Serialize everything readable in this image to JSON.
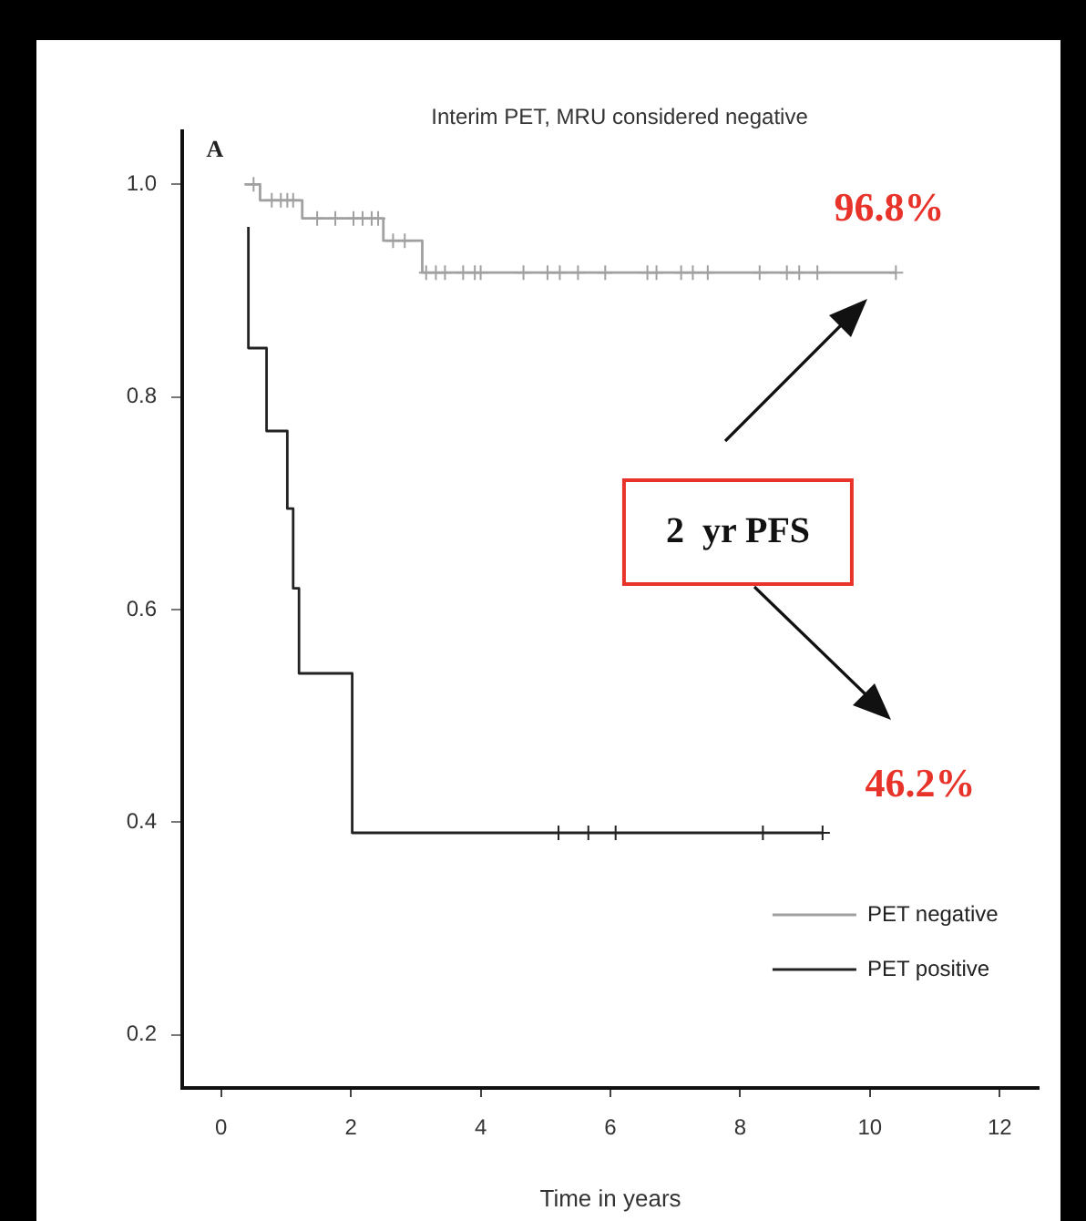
{
  "chart_data": {
    "type": "step",
    "title": "Interim PET, MRU considered negative",
    "xlabel": "Time in years",
    "xlim": [
      -0.6,
      12.6
    ],
    "xticks": [
      0,
      2,
      4,
      6,
      8,
      10,
      12
    ],
    "ylim": [
      0.15,
      1.05
    ],
    "yticks": [
      0.2,
      0.4,
      0.6,
      0.8,
      {
        "value": 1,
        "label": "1.0"
      }
    ],
    "grid": false,
    "legend": "bottom right",
    "series": [
      {
        "name": "PET negative",
        "color": "#a0a0a0",
        "x": [
          0.36,
          0.6,
          1.25,
          2.5,
          3.1,
          10.4
        ],
        "values": [
          1.0,
          0.985,
          0.968,
          0.947,
          0.917,
          0.917
        ]
      },
      {
        "name": "PET positive",
        "color": "#222222",
        "x": [
          0.42,
          0.42,
          0.7,
          1.02,
          1.11,
          1.2,
          2.02,
          9.27
        ],
        "values": [
          0.96,
          0.846,
          0.768,
          0.695,
          0.62,
          0.54,
          0.39,
          0.39
        ]
      },
      {
        "type": "scatter",
        "marker": "cross",
        "color": "#a0a0a0",
        "x": [
          0.5,
          0.78,
          0.92,
          1.02,
          1.11,
          1.48,
          1.76,
          2.04,
          2.18,
          2.32,
          2.42,
          2.65,
          2.83,
          3.16,
          3.31,
          3.45,
          3.73,
          3.91,
          4.0,
          4.66,
          5.03,
          5.22,
          5.5,
          5.92,
          6.57,
          6.71,
          7.09,
          7.27,
          7.5,
          8.3,
          8.72,
          8.91,
          9.19,
          10.4
        ],
        "values": [
          1.0,
          0.985,
          0.985,
          0.985,
          0.985,
          0.968,
          0.968,
          0.968,
          0.968,
          0.968,
          0.968,
          0.947,
          0.947,
          0.917,
          0.917,
          0.917,
          0.917,
          0.917,
          0.917,
          0.917,
          0.917,
          0.917,
          0.917,
          0.917,
          0.917,
          0.917,
          0.917,
          0.917,
          0.917,
          0.917,
          0.917,
          0.917,
          0.917,
          0.917
        ]
      },
      {
        "type": "scatter",
        "marker": "cross",
        "color": "#222222",
        "x": [
          5.2,
          5.66,
          6.08,
          8.35,
          9.27
        ],
        "values": [
          0.39,
          0.39,
          0.39,
          0.39,
          0.39
        ]
      }
    ],
    "annotations": [
      "A",
      "96.8%",
      "2  yr PFS",
      "46.2%"
    ]
  }
}
